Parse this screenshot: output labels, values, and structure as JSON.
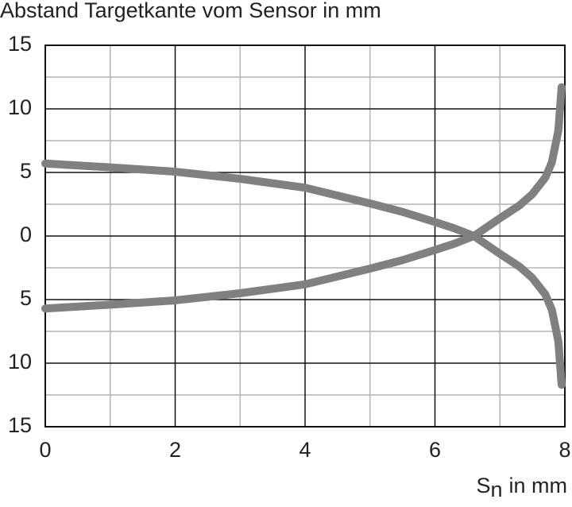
{
  "chart_data": {
    "type": "line",
    "title": "Abstand Targetkante vom Sensor in mm",
    "x_label": {
      "symbol": "S",
      "subscript": "n",
      "unit": "in mm"
    },
    "x": [
      0,
      1,
      2,
      3,
      4,
      5,
      5.5,
      6,
      6.3,
      6.6,
      7,
      7.3,
      7.5,
      7.7,
      7.8,
      7.9,
      7.95
    ],
    "series": [
      {
        "color": "#808080",
        "values": [
          5.7,
          5.4,
          5.06,
          4.5,
          3.8,
          2.56,
          1.9,
          1.1,
          0.6,
          0,
          -1.4,
          -2.4,
          -3.3,
          -4.6,
          -5.8,
          -8.3,
          -11.7
        ]
      },
      {
        "color": "#808080",
        "values": [
          -5.7,
          -5.4,
          -5.06,
          -4.5,
          -3.8,
          -2.56,
          -1.9,
          -1.1,
          -0.6,
          0,
          1.4,
          2.4,
          3.3,
          4.6,
          5.8,
          8.3,
          11.7
        ]
      }
    ],
    "xlim": [
      0,
      8
    ],
    "ylim": [
      -15,
      15
    ],
    "xticks": [
      0,
      2,
      4,
      6,
      8
    ],
    "yticks": [
      {
        "value": -15,
        "label": "15"
      },
      {
        "value": -10,
        "label": "10"
      },
      {
        "value": -5,
        "label": "5"
      },
      0,
      5,
      10,
      15
    ],
    "minor_xticks": [
      1,
      3,
      5,
      7
    ],
    "minor_yticks": [
      -12.5,
      -7.5,
      -2.5,
      2.5,
      7.5,
      12.5
    ],
    "grid": true
  }
}
